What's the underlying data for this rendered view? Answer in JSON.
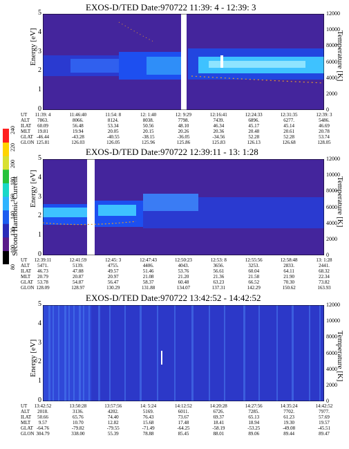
{
  "panels": [
    {
      "title": "EXOS-D/TED   Date:970722  11:39: 4 - 12:39: 3",
      "ylabel": "Energy [eV]",
      "ylabel_right": "Temperature [K]",
      "orbit_rows": {
        "UT": [
          "11:39: 4",
          "11:46:40",
          "11:54: 8",
          "12: 1:40",
          "12: 9:29",
          "12:16:41",
          "12:24:33",
          "12:31:35",
          "12:39: 3"
        ],
        "ALT": [
          "7863.",
          "8066.",
          "8124.",
          "8038.",
          "7798.",
          "7439.",
          "6896.",
          "6277.",
          "5486."
        ],
        "ILAT": [
          "60.09",
          "56.48",
          "53.34",
          "50.56",
          "48.10",
          "46.34",
          "45.17",
          "45.14",
          "46.69"
        ],
        "MLT": [
          "19.81",
          "19.94",
          "20.05",
          "20.15",
          "20.26",
          "20.36",
          "20.48",
          "20.61",
          "20.78"
        ],
        "GLAT": [
          "-46.44",
          "-43.28",
          "-40.55",
          "-38.15",
          "-36.05",
          "-34.56",
          "52.28",
          "52.28",
          "53.74"
        ],
        "GLON": [
          "125.81",
          "126.03",
          "126.05",
          "125.96",
          "125.86",
          "125.83",
          "126.13",
          "126.68",
          "128.05"
        ]
      }
    },
    {
      "title": "EXOS-D/TED   Date:970722  12:39:11 - 13: 1:28",
      "ylabel": "Energy [eV]",
      "ylabel_right": "Temperature [K]",
      "orbit_rows": {
        "UT": [
          "12:39:11",
          "12:41:59",
          "12:45: 3",
          "12:47:43",
          "12:50:23",
          "12:53: 8",
          "12:55:56",
          "12:58:48",
          "13: 1:28"
        ],
        "ALT": [
          "5471.",
          "5139.",
          "4755.",
          "4406.",
          "4043.",
          "3656.",
          "3253.",
          "2833.",
          "2441."
        ],
        "ILAT": [
          "46.73",
          "47.88",
          "49.57",
          "51.46",
          "53.76",
          "56.61",
          "60.04",
          "64.11",
          "68.32"
        ],
        "MLT": [
          "20.79",
          "20.87",
          "20.97",
          "21.08",
          "21.20",
          "21.36",
          "21.58",
          "21.90",
          "22.34"
        ],
        "GLAT": [
          "53.78",
          "54.87",
          "56.47",
          "58.37",
          "60.48",
          "63.23",
          "66.52",
          "70.30",
          "73.82"
        ],
        "GLON": [
          "128.09",
          "128.97",
          "130.29",
          "131.88",
          "134.07",
          "137.31",
          "142.29",
          "150.62",
          "163.93"
        ]
      }
    },
    {
      "title": "EXOS-D/TED   Date:970722  13:42:52 - 14:42:52",
      "ylabel": "Energy [eV]",
      "ylabel_right": "Temperature [K]",
      "orbit_rows": {
        "UT": [
          "13:42:52",
          "13:50:28",
          "13:57:56",
          "14: 5:24",
          "14:12:52",
          "14:20:28",
          "14:27:56",
          "14:35:24",
          "14:42:52"
        ],
        "ALT": [
          "2018.",
          "3136.",
          "4202.",
          "5169.",
          "6011.",
          "6726.",
          "7285.",
          "7702.",
          "7977."
        ],
        "ILAT": [
          "50.66",
          "65.76",
          "74.40",
          "76.43",
          "73.67",
          "69.37",
          "65.13",
          "61.23",
          "57.69"
        ],
        "MLT": [
          "9.57",
          "10.70",
          "12.82",
          "15.68",
          "17.48",
          "18.41",
          "18.94",
          "19.30",
          "19.57"
        ],
        "GLAT": [
          "-64.76",
          "-79.82",
          "-79.55",
          "-71.49",
          "-64.25",
          "-58.19",
          "-53.25",
          "-49.08",
          "-45.51"
        ],
        "GLON": [
          "304.79",
          "338.00",
          "55.39",
          "78.88",
          "85.45",
          "88.01",
          "89.06",
          "89.44",
          "89.47"
        ]
      }
    }
  ],
  "row_labels": [
    "UT",
    "ALT",
    "ILAT",
    "MLT",
    "GLAT",
    "GLON"
  ],
  "colorbar": {
    "title": "Second Harmonic Current",
    "ticks": [
      "80",
      "100",
      "120",
      "140",
      "160",
      "180",
      "200",
      "220",
      "240"
    ]
  },
  "chart_data": [
    {
      "type": "heatmap",
      "title": "EXOS-D/TED   Date:970722  11:39: 4 - 12:39: 3",
      "ylabel": "Energy [eV]",
      "ylabel_right": "Temperature [K]",
      "ylim": [
        0,
        5
      ],
      "ylim_right": [
        0,
        12000
      ],
      "yticks": [
        "0",
        "1",
        "2",
        "3",
        "4",
        "5"
      ],
      "yticks_right": [
        "0",
        "2000",
        "4000",
        "6000",
        "8000",
        "10000",
        "12000"
      ],
      "x": [
        "11:39: 4",
        "11:46:40",
        "11:54: 8",
        "12: 1:40",
        "12: 9:29",
        "12:16:41",
        "12:24:33",
        "12:31:35",
        "12:39: 3"
      ],
      "colors": {
        "background": "#44259c",
        "mid": "#1d4ff0",
        "high": "#3ec2ff",
        "peak": "#d8f8ff",
        "gap": "#ffffff",
        "temperature_trace": "#e59a2c"
      }
    },
    {
      "type": "heatmap",
      "title": "EXOS-D/TED   Date:970722  12:39:11 - 13: 1:28",
      "ylabel": "Energy [eV]",
      "ylabel_right": "Temperature [K]",
      "ylim": [
        0,
        5
      ],
      "ylim_right": [
        0,
        12000
      ],
      "yticks": [
        "0",
        "1",
        "2",
        "3",
        "4",
        "5"
      ],
      "yticks_right": [
        "0",
        "2000",
        "4000",
        "6000",
        "8000",
        "10000",
        "12000"
      ],
      "x": [
        "12:39:11",
        "12:41:59",
        "12:45: 3",
        "12:47:43",
        "12:50:23",
        "12:53: 8",
        "12:55:56",
        "12:58:48",
        "13: 1:28"
      ],
      "colors": {
        "background": "#44259c",
        "mid": "#1d4ff0",
        "high": "#3ec2ff",
        "gap": "#ffffff",
        "temperature_trace": "#e59a2c"
      }
    },
    {
      "type": "heatmap",
      "title": "EXOS-D/TED   Date:970722  13:42:52 - 14:42:52",
      "ylabel": "Energy [eV]",
      "ylabel_right": "Temperature [K]",
      "ylim": [
        0,
        5
      ],
      "ylim_right": [
        0,
        12000
      ],
      "yticks": [
        "0",
        "1",
        "2",
        "3",
        "4",
        "5"
      ],
      "yticks_right": [
        "0",
        "2000",
        "4000",
        "6000",
        "8000",
        "10000",
        "12000"
      ],
      "x": [
        "13:42:52",
        "13:50:28",
        "13:57:56",
        "14: 5:24",
        "14:12:52",
        "14:20:28",
        "14:27:56",
        "14:35:24",
        "14:42:52"
      ],
      "colors": {
        "background": "#2c38c8",
        "stripes": "#4a7df0"
      }
    },
    {
      "type": "colorbar",
      "title": "Second Harmonic Current",
      "ticks": [
        80,
        100,
        120,
        140,
        160,
        180,
        200,
        220,
        240
      ],
      "colors": [
        "#000000",
        "#5a1a8a",
        "#2a2ab8",
        "#1d5cf0",
        "#2fb4ff",
        "#19d8c8",
        "#27c23a",
        "#d8e030",
        "#ffd400",
        "#ff2020"
      ]
    }
  ]
}
